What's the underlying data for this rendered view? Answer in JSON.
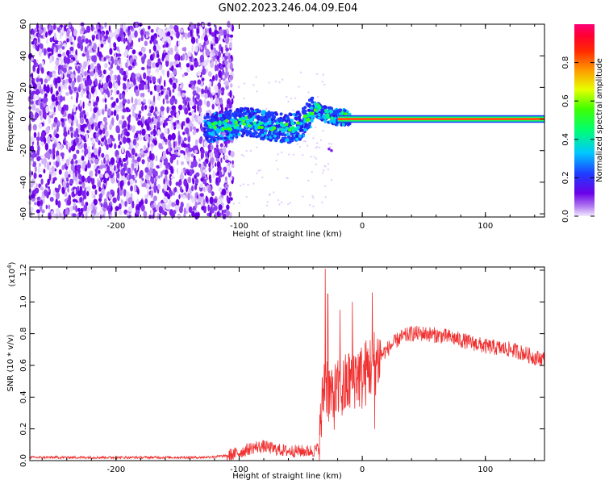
{
  "title": "GN02.2023.246.04.09.E04",
  "colors": {
    "snr_line": "#f03030",
    "axes": "#000000"
  },
  "chart_data": [
    {
      "type": "heatmap",
      "xlabel": "Height of straight line (km)",
      "ylabel": "Frequency (Hz)",
      "xlim": [
        -270,
        148
      ],
      "ylim": [
        -62,
        60
      ],
      "xticks": [
        -200,
        -100,
        0,
        100
      ],
      "yticks": [
        -60,
        -40,
        -20,
        0,
        20,
        40,
        60
      ],
      "xtick_labels": [
        "-200",
        "-100",
        "0",
        "100"
      ],
      "ytick_labels": [
        "-60",
        "-40",
        "-20",
        "0",
        "20",
        "40",
        "60"
      ],
      "colorbar": {
        "label": "Normalized spectral amplitude",
        "range": [
          0,
          1
        ],
        "ticks": [
          0.0,
          0.2,
          0.4,
          0.6,
          0.8
        ],
        "tick_labels": [
          "0.0",
          "0.2",
          "0.4",
          "0.6",
          "0.8"
        ],
        "colormap": "rainbow (purple-blue-cyan-green-yellow-orange-red-magenta)"
      },
      "features": {
        "noise_region_x": [
          -270,
          -105
        ],
        "ridge_start_x": -128,
        "ridge_path": [
          [
            -128,
            -6
          ],
          [
            -110,
            -4
          ],
          [
            -95,
            -2
          ],
          [
            -80,
            -4
          ],
          [
            -60,
            -6
          ],
          [
            -50,
            -4
          ],
          [
            -44,
            2
          ],
          [
            -38,
            7
          ],
          [
            -30,
            3
          ],
          [
            -20,
            1
          ],
          [
            -10,
            1
          ],
          [
            0,
            1
          ],
          [
            148,
            0
          ]
        ]
      }
    },
    {
      "type": "line",
      "xlabel": "Height of straight line (km)",
      "ylabel": "SNR (10 * v/v)",
      "y_multiplier": "(x10",
      "y_multiplier_exp": "4",
      "y_multiplier_close": ")",
      "xlim": [
        -270,
        148
      ],
      "ylim": [
        0,
        1.22
      ],
      "xticks": [
        -200,
        -100,
        0,
        100
      ],
      "yticks": [
        0.0,
        0.2,
        0.4,
        0.6,
        0.8,
        1.0,
        1.2
      ],
      "xtick_labels": [
        "-200",
        "-100",
        "0",
        "100"
      ],
      "ytick_labels": [
        "0.0",
        "0.2",
        "0.4",
        "0.6",
        "0.8",
        "1.0",
        "1.2"
      ],
      "series": [
        {
          "x": [
            -270,
            -200,
            -130,
            -110,
            -100,
            -90,
            -80,
            -70,
            -60,
            -50,
            -40,
            -35,
            -32,
            -30,
            -28,
            -25,
            -20,
            -15,
            -10,
            -5,
            0,
            5,
            10,
            20,
            30,
            40,
            50,
            60,
            70,
            80,
            90,
            100,
            110,
            120,
            130,
            140,
            148
          ],
          "y": [
            0.02,
            0.02,
            0.02,
            0.03,
            0.05,
            0.08,
            0.09,
            0.07,
            0.06,
            0.06,
            0.06,
            0.08,
            0.4,
            0.55,
            0.45,
            0.4,
            0.42,
            0.45,
            0.5,
            0.55,
            0.52,
            0.58,
            0.62,
            0.7,
            0.77,
            0.8,
            0.8,
            0.79,
            0.78,
            0.76,
            0.74,
            0.72,
            0.71,
            0.7,
            0.68,
            0.65,
            0.64
          ],
          "spikes": [
            [
              -30,
              1.21
            ],
            [
              -28,
              1.05
            ],
            [
              -25,
              0.55
            ],
            [
              -18,
              0.95
            ],
            [
              -15,
              0.45
            ],
            [
              -8,
              1.0
            ],
            [
              -5,
              0.65
            ],
            [
              8,
              1.06
            ],
            [
              10,
              0.2
            ]
          ]
        }
      ]
    }
  ]
}
